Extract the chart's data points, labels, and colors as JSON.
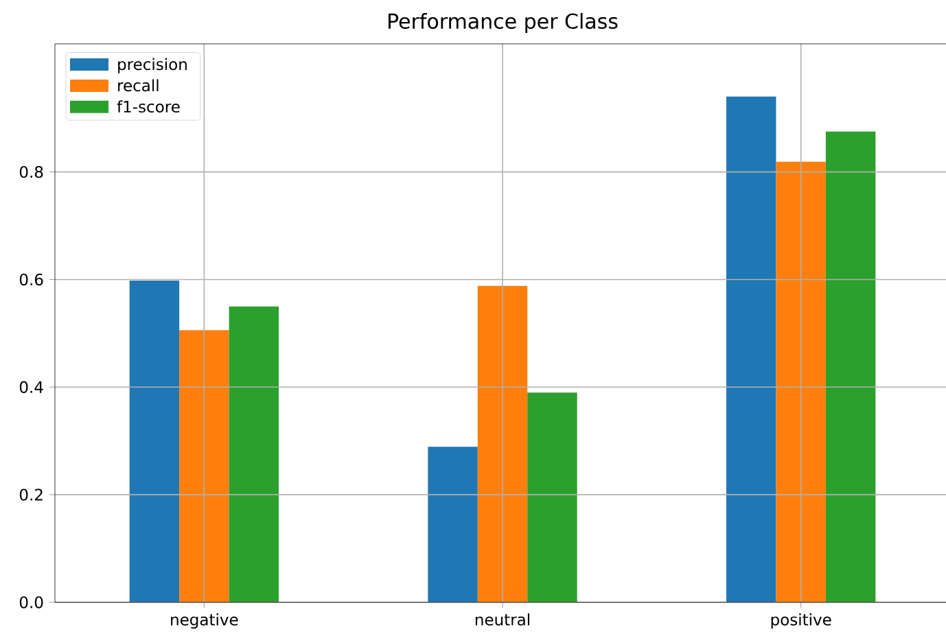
{
  "chart_data": {
    "type": "bar",
    "title": "Performance per Class",
    "categories": [
      "negative",
      "neutral",
      "positive"
    ],
    "series": [
      {
        "name": "precision",
        "color": "#1f77b4",
        "values": [
          0.598,
          0.289,
          0.94
        ]
      },
      {
        "name": "recall",
        "color": "#ff7f0e",
        "values": [
          0.506,
          0.588,
          0.819
        ]
      },
      {
        "name": "f1-score",
        "color": "#2ca02c",
        "values": [
          0.55,
          0.39,
          0.875
        ]
      }
    ],
    "ylim": [
      0,
      1.038
    ],
    "yticks": [
      {
        "value": 0,
        "label": "0.0"
      },
      0.2,
      0.4,
      0.6,
      0.8
    ],
    "grid": true,
    "legend": "top left"
  }
}
